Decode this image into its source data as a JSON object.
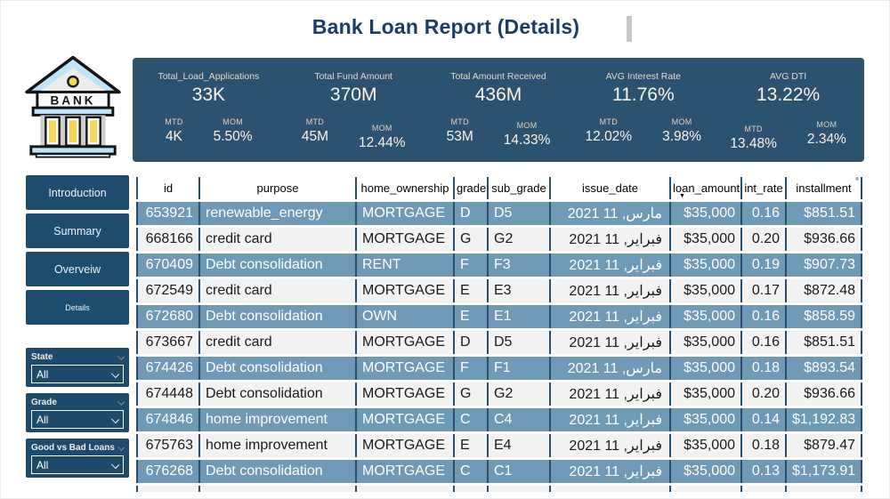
{
  "title": "Bank Loan Report (Details)",
  "logo": {
    "text": "BANK"
  },
  "kpi_band": {
    "mtd_label": "MTD",
    "mom_label": "MOM",
    "kpis": [
      {
        "name": "Total_Load_Applications",
        "value": "33K",
        "mtd": "4K",
        "mom": "5.50%"
      },
      {
        "name": "Total Fund Amount",
        "value": "370M",
        "mtd": "45M",
        "mom": "12.44%"
      },
      {
        "name": "Total Amount Received",
        "value": "436M",
        "mtd": "53M",
        "mom": "14.33%"
      },
      {
        "name": "AVG Interest Rate",
        "value": "11.76%",
        "mtd": "12.02%",
        "mom": "3.98%"
      },
      {
        "name": "AVG DTI",
        "value": "13.22%",
        "mtd": "13.48%",
        "mom": "2.34%"
      }
    ]
  },
  "sidebar": {
    "items": [
      {
        "label": "Introduction"
      },
      {
        "label": "Summary"
      },
      {
        "label": "Overveiw"
      },
      {
        "label": "Details"
      }
    ]
  },
  "filters": [
    {
      "label": "State",
      "value": "All"
    },
    {
      "label": "Grade",
      "value": "All"
    },
    {
      "label": "Good vs Bad Loans",
      "value": "All"
    }
  ],
  "table": {
    "sorted_column": "loan_amount",
    "columns": [
      {
        "key": "id",
        "label": "id"
      },
      {
        "key": "purpose",
        "label": "purpose"
      },
      {
        "key": "home_ownership",
        "label": "home_ownership"
      },
      {
        "key": "grade",
        "label": "grade"
      },
      {
        "key": "sub_grade",
        "label": "sub_grade"
      },
      {
        "key": "issue_date",
        "label": "issue_date"
      },
      {
        "key": "loan_amount",
        "label": "loan_amount"
      },
      {
        "key": "int_rate",
        "label": "int_rate"
      },
      {
        "key": "installment",
        "label": "installment"
      }
    ],
    "rows": [
      [
        "653921",
        "renewable_energy",
        "MORTGAGE",
        "D",
        "D5",
        "مارس, 11 2021",
        "$35,000",
        "0.16",
        "$851.51"
      ],
      [
        "668166",
        "credit card",
        "MORTGAGE",
        "G",
        "G2",
        "فبراير, 11 2021",
        "$35,000",
        "0.20",
        "$936.66"
      ],
      [
        "670409",
        "Debt consolidation",
        "RENT",
        "F",
        "F3",
        "فبراير, 11 2021",
        "$35,000",
        "0.19",
        "$907.73"
      ],
      [
        "672549",
        "credit card",
        "MORTGAGE",
        "E",
        "E3",
        "فبراير, 11 2021",
        "$35,000",
        "0.17",
        "$872.48"
      ],
      [
        "672680",
        "Debt consolidation",
        "OWN",
        "E",
        "E1",
        "فبراير, 11 2021",
        "$35,000",
        "0.16",
        "$858.59"
      ],
      [
        "673667",
        "credit card",
        "MORTGAGE",
        "D",
        "D5",
        "فبراير, 11 2021",
        "$35,000",
        "0.16",
        "$851.51"
      ],
      [
        "674426",
        "Debt consolidation",
        "MORTGAGE",
        "F",
        "F1",
        "مارس, 11 2021",
        "$35,000",
        "0.18",
        "$893.54"
      ],
      [
        "674448",
        "Debt consolidation",
        "MORTGAGE",
        "G",
        "G2",
        "فبراير, 11 2021",
        "$35,000",
        "0.20",
        "$936.66"
      ],
      [
        "674846",
        "home improvement",
        "MORTGAGE",
        "C",
        "C4",
        "فبراير, 11 2021",
        "$35,000",
        "0.14",
        "$1,192.83"
      ],
      [
        "675763",
        "home improvement",
        "MORTGAGE",
        "E",
        "E4",
        "فبراير, 11 2021",
        "$35,000",
        "0.18",
        "$879.47"
      ],
      [
        "676268",
        "Debt consolidation",
        "MORTGAGE",
        "C",
        "C1",
        "فبراير, 11 2021",
        "$35,000",
        "0.13",
        "$1,173.91"
      ]
    ]
  }
}
